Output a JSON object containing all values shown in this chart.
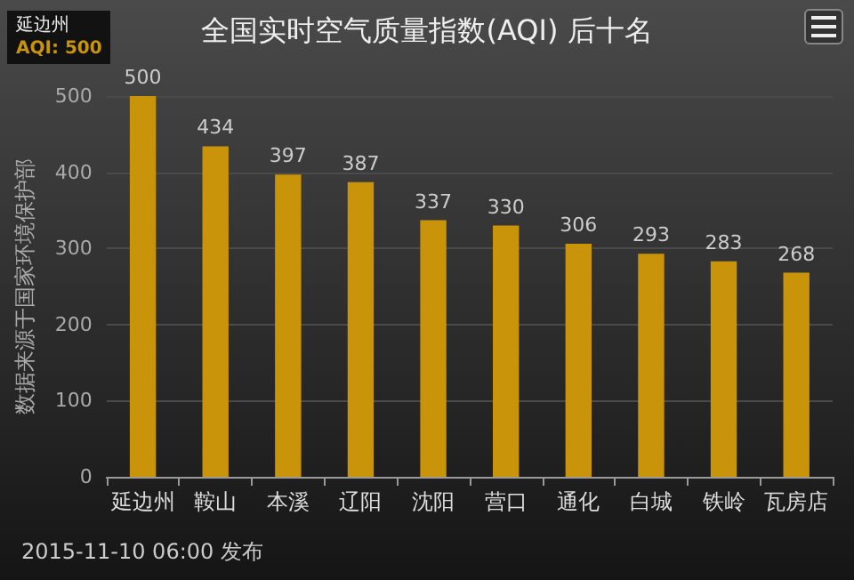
{
  "chart_data": {
    "type": "bar",
    "title": "全国实时空气质量指数(AQI) 后十名",
    "ylabel": "数据来源于国家环境保护部",
    "categories": [
      "延边州",
      "鞍山",
      "本溪",
      "辽阳",
      "沈阳",
      "营口",
      "通化",
      "白城",
      "铁岭",
      "瓦房店"
    ],
    "values": [
      500,
      434,
      397,
      387,
      337,
      330,
      306,
      293,
      283,
      268
    ],
    "color": "#c9940a",
    "ylim": [
      0,
      500
    ],
    "yticks": [
      0,
      100,
      200,
      300,
      400,
      500
    ],
    "grid": "y",
    "data_labels": true,
    "annotations": [
      "2015-11-10 06:00 发布",
      "延边州\nAQI: 500"
    ]
  }
}
